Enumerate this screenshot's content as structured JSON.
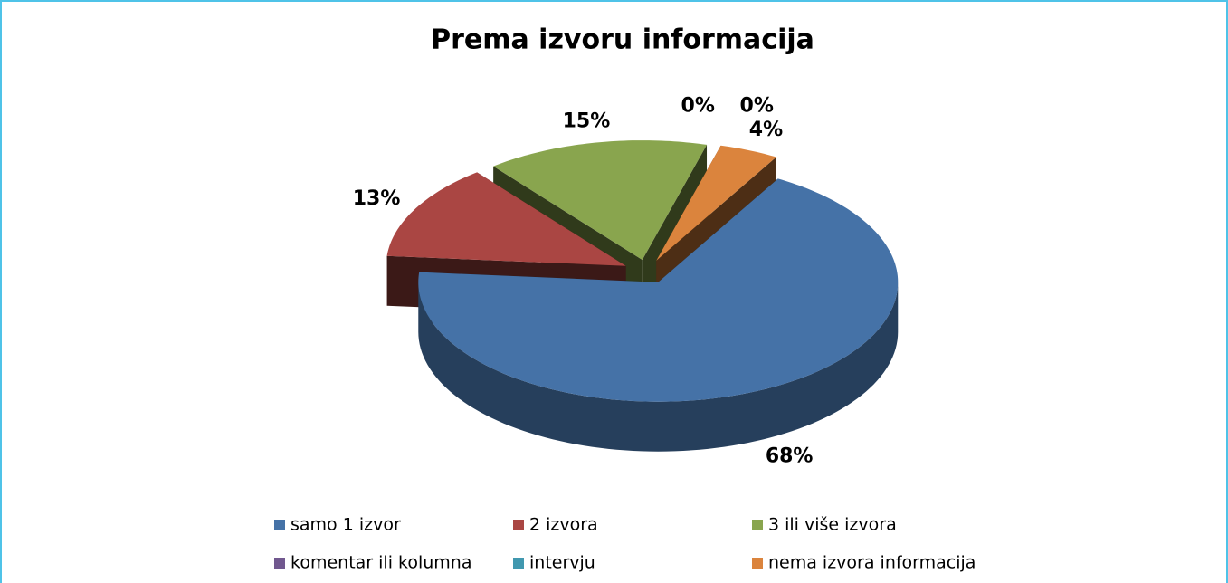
{
  "chart_data": {
    "type": "pie3d",
    "title": "Prema izvoru informacija",
    "categories": [
      "samo 1 izvor",
      "2 izvora",
      "3 ili više izvora",
      "komentar ili kolumna",
      "intervju",
      "nema izvora informacija"
    ],
    "values": [
      68,
      13,
      15,
      0,
      0,
      4
    ],
    "value_labels": [
      "68%",
      "13%",
      "15%",
      "0%",
      "0%",
      "4%"
    ],
    "colors": [
      "#4572a7",
      "#aa4643",
      "#89a54e",
      "#71588f",
      "#4198af",
      "#db843d"
    ]
  }
}
